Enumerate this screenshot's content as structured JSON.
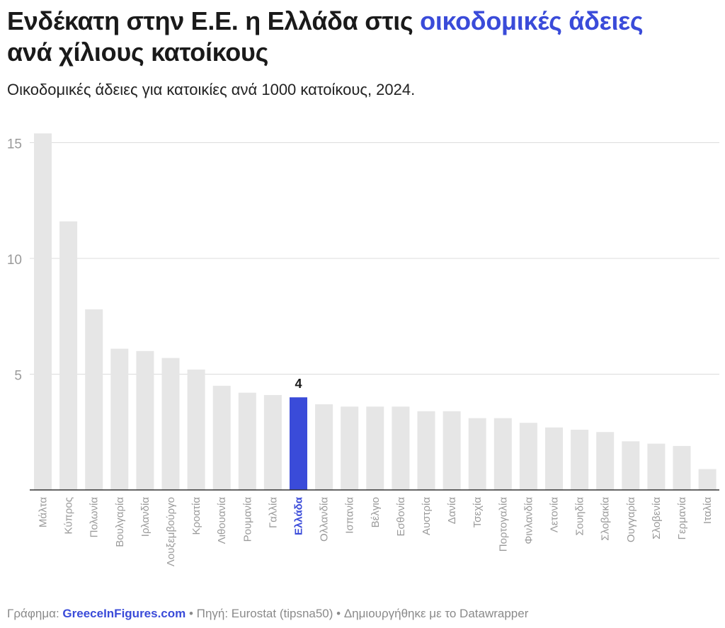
{
  "header": {
    "title_part1": "Ενδέκατη στην Ε.Ε. η Ελλάδα στις ",
    "title_highlight": "οικοδομικές άδειες",
    "title_part2": "ανά χίλιους κατοίκους",
    "subtitle": "Οικοδομικές άδειες για κατοικίες ανά 1000 κατοίκους, 2024."
  },
  "footer": {
    "graph_label": "Γράφημα: ",
    "brand": "GreeceInFigures.com",
    "source": " • Πηγή: Eurostat (tipsna50) • Δημιουργήθηκε με το Datawrapper"
  },
  "colors": {
    "highlight": "#3a4bd9",
    "bar": "#e6e6e6",
    "grid": "#dcdcdc",
    "axis": "#333333",
    "tick_label": "#9a9a9a"
  },
  "chart_data": {
    "type": "bar",
    "ylim": [
      0,
      15.5
    ],
    "yticks": [
      5,
      10,
      15
    ],
    "grid": true,
    "highlight_category": "Ελλάδα",
    "highlight_label": "4",
    "categories": [
      "Μάλτα",
      "Κύπρος",
      "Πολωνία",
      "Βουλγαρία",
      "Ιρλανδία",
      "Λουξεμβούργο",
      "Κροατία",
      "Λιθουανία",
      "Ρουμανία",
      "Γαλλία",
      "Ελλάδα",
      "Ολλανδία",
      "Ισπανία",
      "Βέλγιο",
      "Εσθονία",
      "Αυστρία",
      "Δανία",
      "Τσεχία",
      "Πορτογαλία",
      "Φινλανδία",
      "Λετονία",
      "Σουηδία",
      "Σλοβακία",
      "Ουγγαρία",
      "Σλοβενία",
      "Γερμανία",
      "Ιταλία"
    ],
    "values": [
      15.4,
      11.6,
      7.8,
      6.1,
      6.0,
      5.7,
      5.2,
      4.5,
      4.2,
      4.1,
      4.0,
      3.7,
      3.6,
      3.6,
      3.6,
      3.4,
      3.4,
      3.1,
      3.1,
      2.9,
      2.7,
      2.6,
      2.5,
      2.1,
      2.0,
      1.9,
      0.9
    ]
  }
}
